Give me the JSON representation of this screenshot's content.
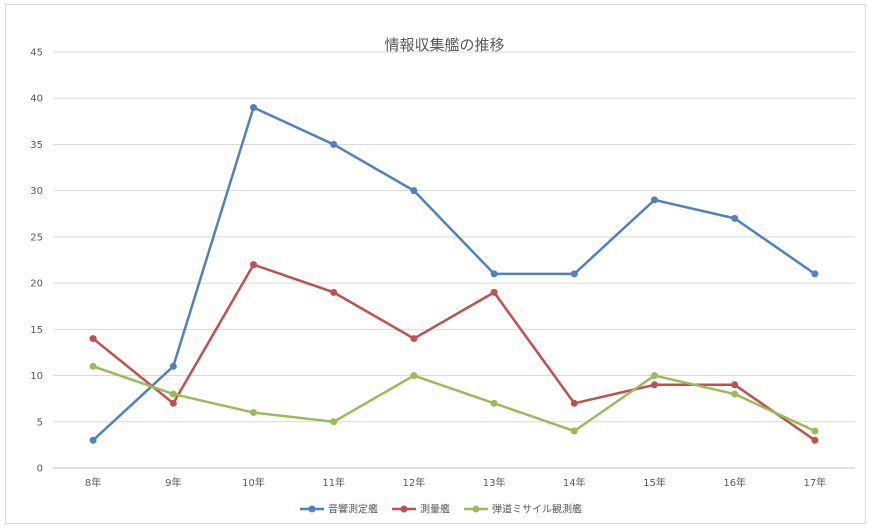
{
  "chart_data": {
    "type": "line",
    "title": "情報収集艦の推移",
    "xlabel": "",
    "ylabel": "",
    "categories": [
      "8年",
      "9年",
      "10年",
      "11年",
      "12年",
      "13年",
      "14年",
      "15年",
      "16年",
      "17年"
    ],
    "ylim": [
      0,
      45
    ],
    "yticks": [
      0,
      5,
      10,
      15,
      20,
      25,
      30,
      35,
      40,
      45
    ],
    "grid": true,
    "legend": "bottom",
    "series": [
      {
        "name": "音響測定艦",
        "color": "#4f81bd",
        "values": [
          3,
          11,
          39,
          35,
          30,
          21,
          21,
          29,
          27,
          21
        ]
      },
      {
        "name": "測量艦",
        "color": "#c0504d",
        "values": [
          14,
          7,
          22,
          19,
          14,
          19,
          7,
          9,
          9,
          3
        ]
      },
      {
        "name": "弾道ミサイル観測艦",
        "color": "#9bbb59",
        "values": [
          11,
          8,
          6,
          5,
          10,
          7,
          4,
          10,
          8,
          4
        ]
      }
    ]
  }
}
